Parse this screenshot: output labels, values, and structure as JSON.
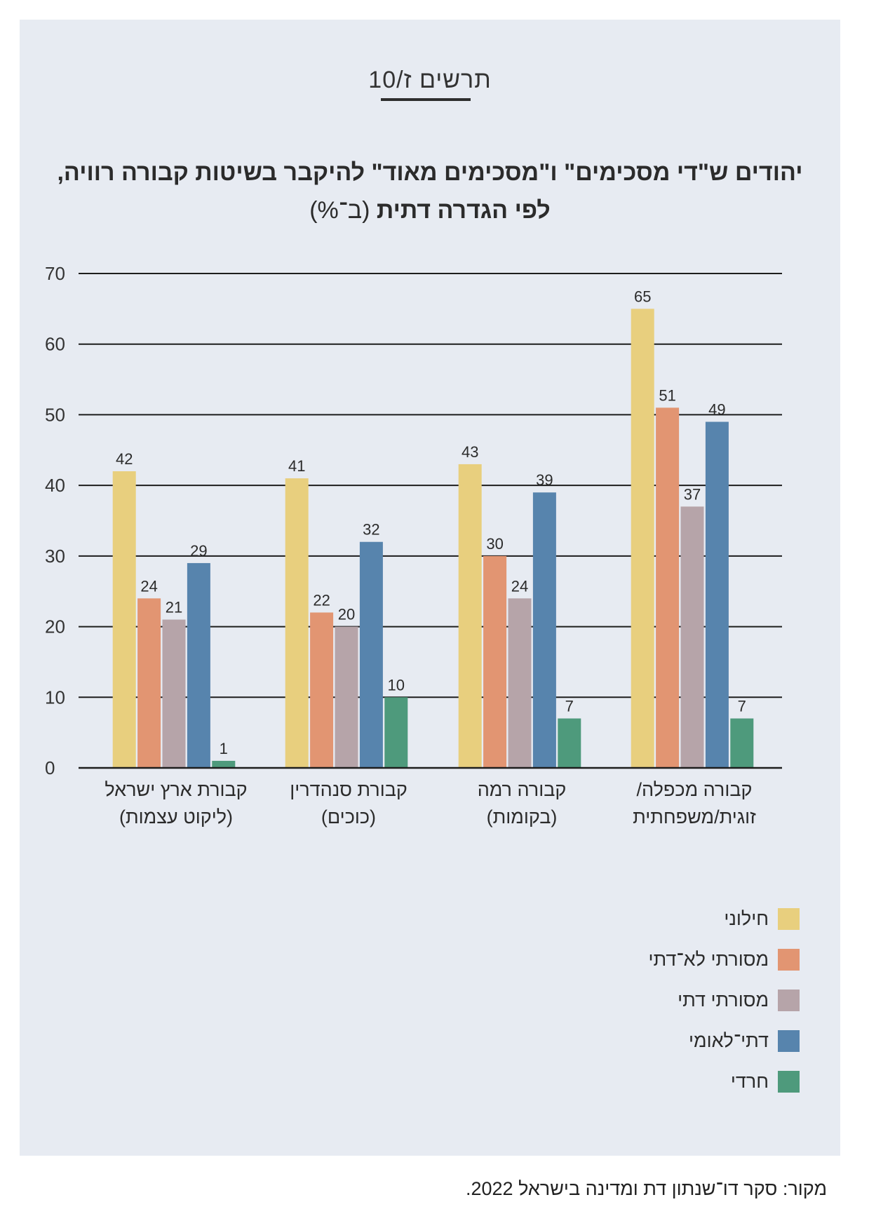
{
  "figure_number": "תרשים ז/10",
  "title_bold": "יהודים ש\"די מסכימים\" ו\"מסכימים מאוד\" להיקבר בשיטות קבורה רוויה, לפי הגדרה דתית",
  "title_unit": "(ב־%)",
  "source": "מקור: סקר דו־שנתון דת ומדינה בישראל 2022.",
  "chart_data": {
    "type": "bar",
    "title": "יהודים ש\"די מסכימים\" ו\"מסכימים מאוד\" להיקבר בשיטות קבורה רוויה, לפי הגדרה דתית (ב־%)",
    "xlabel": "",
    "ylabel": "",
    "ylim": [
      0,
      70
    ],
    "y_ticks": [
      0,
      10,
      20,
      30,
      40,
      50,
      60,
      70
    ],
    "grid": true,
    "legend_position": "bottom-right",
    "categories": [
      [
        "קבורת ארץ ישראל",
        "(ליקוט עצמות)"
      ],
      [
        "קבורת סנהדרין",
        "(כוכים)"
      ],
      [
        "קבורה רמה",
        "(בקומות)"
      ],
      [
        "קבורה מכפלה/",
        "זוגית/משפחתית"
      ]
    ],
    "series": [
      {
        "name": "חילוני",
        "color": "#e8cf7e",
        "values": [
          42,
          41,
          43,
          65
        ]
      },
      {
        "name": "מסורתי לא־דתי",
        "color": "#e29572",
        "values": [
          24,
          22,
          30,
          51
        ]
      },
      {
        "name": "מסורתי דתי",
        "color": "#b6a4a9",
        "values": [
          21,
          20,
          24,
          37
        ]
      },
      {
        "name": "דתי־לאומי",
        "color": "#5784ad",
        "values": [
          29,
          32,
          39,
          49
        ]
      },
      {
        "name": "חרדי",
        "color": "#4e9a7c",
        "values": [
          1,
          10,
          7,
          7
        ]
      }
    ]
  }
}
